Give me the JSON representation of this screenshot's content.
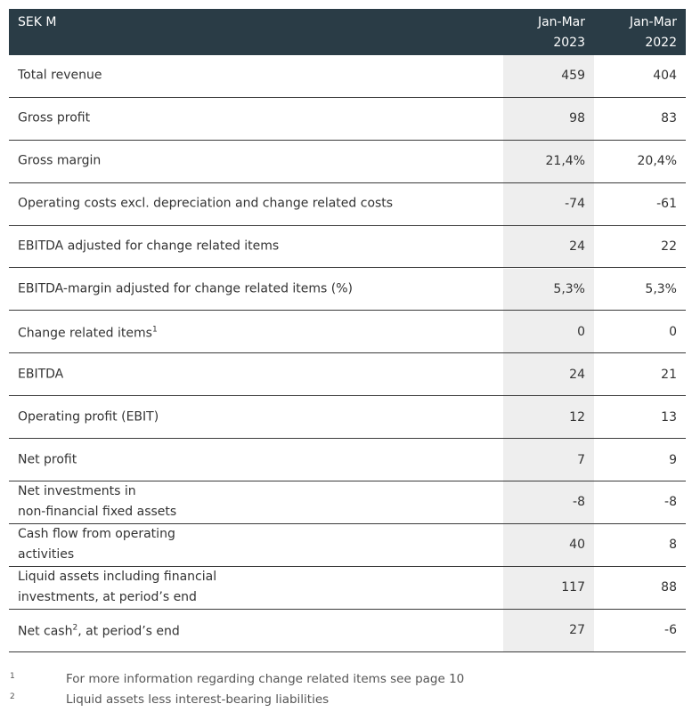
{
  "header": {
    "label": "SEK M",
    "columns": [
      [
        "Jan-Mar",
        "2023"
      ],
      [
        "Jan-Mar",
        "2022"
      ]
    ]
  },
  "table": {
    "rows": [
      {
        "label": [
          "Total revenue"
        ],
        "values": [
          "459",
          "404"
        ]
      },
      {
        "label": [
          "Gross profit"
        ],
        "values": [
          "98",
          "83"
        ]
      },
      {
        "label": [
          "Gross margin"
        ],
        "values": [
          "21,4%",
          "20,4%"
        ]
      },
      {
        "label": [
          "Operating costs excl. depreciation and change related costs"
        ],
        "values": [
          "-74",
          "-61"
        ]
      },
      {
        "label": [
          "EBITDA adjusted for change related items"
        ],
        "values": [
          "24",
          "22"
        ]
      },
      {
        "label": [
          "EBITDA-margin adjusted for change related items (%)"
        ],
        "values": [
          "5,3%",
          "5,3%"
        ]
      },
      {
        "label": [
          "Change related items"
        ],
        "sup": "1",
        "values": [
          "0",
          "0"
        ]
      },
      {
        "label": [
          "EBITDA"
        ],
        "values": [
          "24",
          "21"
        ]
      },
      {
        "label": [
          "Operating profit (EBIT)"
        ],
        "values": [
          "12",
          "13"
        ]
      },
      {
        "label": [
          "Net profit"
        ],
        "values": [
          "7",
          "9"
        ]
      },
      {
        "label": [
          "Net investments in",
          "non-financial fixed assets"
        ],
        "values": [
          "-8",
          "-8"
        ]
      },
      {
        "label": [
          "Cash flow from operating",
          "activities"
        ],
        "values": [
          "40",
          "8"
        ]
      },
      {
        "label": [
          "Liquid assets including financial",
          "investments, at period’s end"
        ],
        "values": [
          "117",
          "88"
        ]
      },
      {
        "label": [
          "Net cash"
        ],
        "sup": "2",
        "label_rest": ", at period’s end",
        "values": [
          "27",
          "-6"
        ]
      }
    ]
  },
  "footnotes": [
    {
      "mark": "1",
      "text": "For more information regarding change related items see page 10"
    },
    {
      "mark": "2",
      "text": "Liquid assets less interest-bearing liabilities"
    }
  ]
}
